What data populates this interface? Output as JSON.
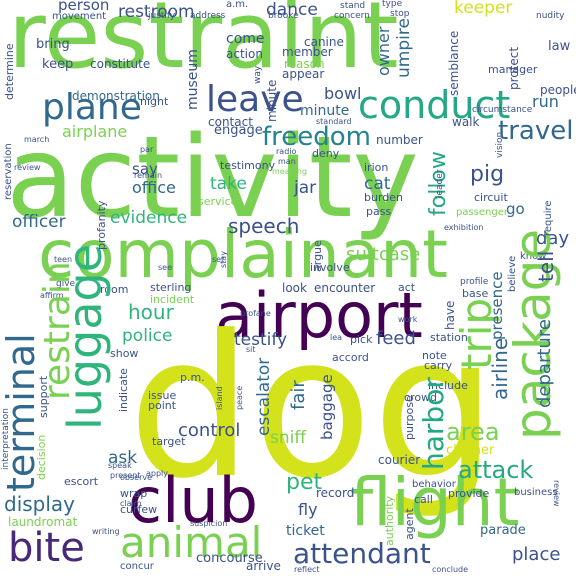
{
  "words": {
    "dog": "dog",
    "activity": "activity",
    "restraint": "restraint",
    "complainant": "complainant",
    "airport": "airport",
    "flight": "flight",
    "club": "club",
    "package": "package",
    "luggage": "luggage",
    "conduct": "conduct",
    "plane": "plane",
    "leave": "leave",
    "animal": "animal",
    "bite": "bite",
    "terminal": "terminal",
    "trip": "trip",
    "freedom": "freedom",
    "restrain": "restrain",
    "attendant": "attendant",
    "travel": "travel",
    "harbor": "harbor",
    "attack": "attack",
    "area": "area",
    "pet": "pet",
    "display": "display",
    "airline": "airline",
    "suitcase": "suitcase",
    "speech": "speech",
    "follow": "follow",
    "evidence": "evidence",
    "officer": "officer",
    "hour": "hour",
    "testify": "testify",
    "feed": "feed",
    "police": "police",
    "fair": "fair",
    "baggage": "baggage",
    "escalator": "escalator",
    "control": "control",
    "ask": "ask",
    "sniff": "sniff",
    "fly": "fly",
    "ticket": "ticket",
    "concourse": "concourse",
    "place": "place",
    "parade": "parade",
    "day": "day",
    "pig": "pig",
    "cat": "cat",
    "jar": "jar",
    "take": "take",
    "office": "office",
    "say": "say",
    "airplane": "airplane",
    "bowl": "bowl",
    "dance": "dance",
    "restroom": "restroom",
    "person": "person",
    "keeper": "keeper",
    "umpire": "umpire",
    "owner": "owner",
    "museum": "museum",
    "run": "run",
    "departure": "departure",
    "presence": "presence",
    "laundromat": "laundromat",
    "courier": "courier",
    "cleaner": "cleaner",
    "record": "record",
    "go": "go",
    "tell": "tell",
    "engage": "engage",
    "minute": "minute",
    "contact": "contact",
    "demonstration": "demonstration",
    "come": "come",
    "keep": "keep",
    "bring": "bring",
    "constitute": "constitute",
    "action": "action",
    "appear": "appear",
    "canine": "canine",
    "member": "member",
    "reason": "reason",
    "number": "number",
    "walk": "walk",
    "manager": "manager",
    "protect": "protect",
    "law": "law",
    "people": "people",
    "testimony": "testimony",
    "deny": "deny",
    "irion": "irion",
    "burden": "burden",
    "pass": "pass",
    "circuit": "circuit",
    "passenger": "passenger",
    "profanity": "profanity",
    "service": "service",
    "look": "look",
    "encounter": "encounter",
    "act": "act",
    "room": "room",
    "sterling": "sterling",
    "incident": "incident",
    "argue": "argue",
    "involve": "involve",
    "base": "base",
    "have": "have",
    "pick": "pick",
    "station": "station",
    "note": "note",
    "carry": "carry",
    "accord": "accord",
    "include": "include",
    "purpose": "purpose",
    "crowd": "crowd",
    "issue": "issue",
    "point": "point",
    "target": "target",
    "escort": "escort",
    "wrap": "wrap",
    "curfew": "curfew",
    "arrive": "arrive",
    "provide": "provide",
    "business": "business",
    "call": "call",
    "behavior": "behavior",
    "agent": "agent",
    "authority": "authority",
    "decision": "decision",
    "support": "support",
    "show": "show",
    "indicate": "indicate",
    "night": "night",
    "movement": "movement",
    "address": "address",
    "justify": "justify",
    "concern": "concern",
    "stand": "stand",
    "brooke": "brooke",
    "type": "type",
    "stop": "stop",
    "nudity": "nudity",
    "semblance": "semblance",
    "circumstance": "circumstance",
    "know": "know",
    "require": "require",
    "believe": "believe",
    "profile": "profile",
    "set": "set",
    "see": "see",
    "give": "give",
    "affirm": "affirm",
    "teen": "teen",
    "review": "review",
    "march": "march",
    "reservation": "reservation",
    "determine": "determine",
    "interpretation": "interpretation",
    "speak": "speak",
    "present": "present",
    "apply": "apply",
    "observe": "observe",
    "writing": "writing",
    "claim": "claim",
    "concur": "concur",
    "suspicion": "suspicion",
    "conclude": "conclude",
    "reflect": "reflect",
    "amm": "a.m.",
    "pmm": "p.m.",
    "standard": "standard",
    "radio": "radio",
    "man": "man",
    "remain": "remain",
    "meaning": "meaning",
    "par": "par",
    "work": "work",
    "island": "island",
    "exhibition": "exhibition",
    "leader": "leader",
    "vision": "vision",
    "profane": "profane",
    "lea": "lea",
    "sit": "sit",
    "peace": "peace",
    "stay": "stay",
    "way": "way"
  },
  "colors": {
    "bg": "#ffffff",
    "lime": "#7ad151",
    "yellow": "#d3e21b",
    "green": "#2fb47c",
    "teal": "#25838e",
    "blue": "#31688e",
    "indigo": "#3b528b",
    "purple": "#440154",
    "violet": "#482878",
    "aqua": "#22a884",
    "lightgreen": "#a5db36"
  }
}
